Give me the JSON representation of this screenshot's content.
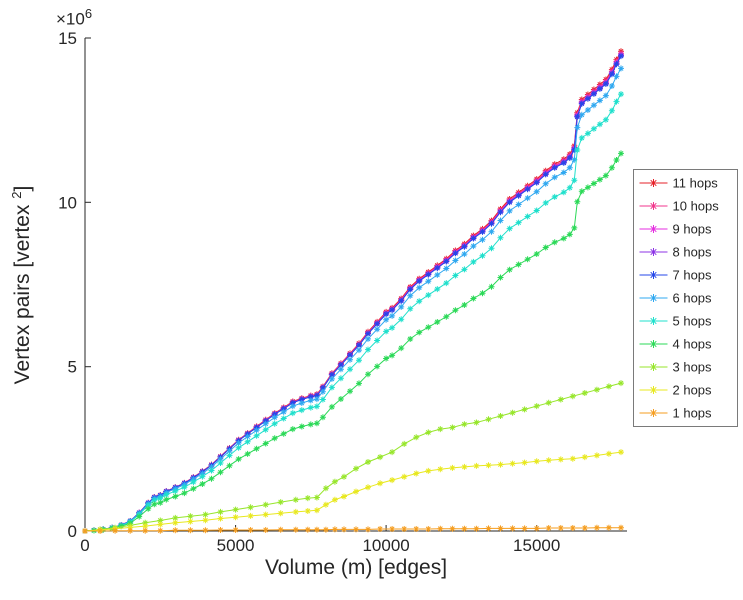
{
  "figure": {
    "xlabel": "Volume (m) [edges]",
    "ylabel_prefix": "Vertex pairs [vertex ",
    "ylabel_sup": "2",
    "ylabel_suffix": "]",
    "y_multiplier_label": "×10",
    "y_multiplier_exp": "6",
    "background_color": "#ffffff",
    "axis_color": "#262626",
    "legend_border_color": "#7a7a7a"
  },
  "chart_data": {
    "type": "line",
    "title": "",
    "xlabel": "Volume (m) [edges]",
    "ylabel": "Vertex pairs [vertex^2]",
    "xlim": [
      0,
      18000
    ],
    "ylim": [
      0,
      15000000
    ],
    "x_ticks": [
      0,
      5000,
      10000,
      15000
    ],
    "y_ticks": [
      0,
      5,
      10,
      15
    ],
    "y_tick_multiplier": 1000000,
    "grid": false,
    "marker": "asterisk",
    "legend_position": "right-outside",
    "base_x": [
      0,
      300,
      600,
      900,
      1200,
      1500,
      1800,
      2100,
      2300,
      2500,
      2700,
      3000,
      3300,
      3600,
      3900,
      4200,
      4500,
      4800,
      5100,
      5400,
      5700,
      6000,
      6300,
      6600,
      6900,
      7200,
      7500,
      7700,
      7900,
      8200,
      8500,
      8800,
      9100,
      9400,
      9700,
      10000,
      10200,
      10500,
      10800,
      11100,
      11400,
      11700,
      12000,
      12300,
      12600,
      12900,
      13200,
      13500,
      13800,
      14100,
      14400,
      14700,
      15000,
      15300,
      15600,
      15900,
      16100,
      16250,
      16350,
      16500,
      16700,
      16900,
      17100,
      17300,
      17500,
      17650,
      17800
    ],
    "base_y_millions": [
      0,
      0.02,
      0.05,
      0.1,
      0.18,
      0.3,
      0.55,
      0.85,
      1.02,
      1.08,
      1.2,
      1.32,
      1.45,
      1.62,
      1.8,
      2.0,
      2.25,
      2.5,
      2.75,
      2.95,
      3.15,
      3.35,
      3.55,
      3.72,
      3.9,
      4.0,
      4.08,
      4.12,
      4.35,
      4.75,
      5.05,
      5.35,
      5.65,
      6.0,
      6.3,
      6.6,
      6.72,
      7.0,
      7.35,
      7.6,
      7.8,
      8.0,
      8.2,
      8.45,
      8.65,
      8.9,
      9.1,
      9.35,
      9.7,
      10.0,
      10.2,
      10.4,
      10.6,
      10.85,
      11.05,
      11.2,
      11.35,
      11.6,
      12.6,
      13.0,
      13.15,
      13.3,
      13.45,
      13.6,
      13.9,
      14.2,
      14.45
    ],
    "low_x": [
      0,
      500,
      1000,
      1500,
      2000,
      2500,
      3000,
      3500,
      4000,
      4500,
      5000,
      5500,
      6000,
      6500,
      7000,
      7400,
      7700,
      8000,
      8300,
      8600,
      9000,
      9400,
      9800,
      10200,
      10600,
      11000,
      11400,
      11800,
      12200,
      12600,
      13000,
      13400,
      13800,
      14200,
      14600,
      15000,
      15400,
      15800,
      16200,
      16600,
      17000,
      17400,
      17800
    ],
    "series": [
      {
        "name": "11 hops",
        "color": "#e62028",
        "y_scale": 1.01
      },
      {
        "name": "10 hops",
        "color": "#f0368c",
        "y_scale": 1.006
      },
      {
        "name": "9 hops",
        "color": "#e42ce0",
        "y_scale": 1.003
      },
      {
        "name": "8 hops",
        "color": "#8c33e6",
        "y_scale": 1.0015
      },
      {
        "name": "7 hops",
        "color": "#2547e8",
        "y_scale": 1.0
      },
      {
        "name": "6 hops",
        "color": "#2fa8f0",
        "y_scale": 0.974
      },
      {
        "name": "5 hops",
        "color": "#1fe0cc",
        "y_scale": 0.92
      },
      {
        "name": "4 hops",
        "color": "#2bd957",
        "y_scale": 0.795
      },
      {
        "name": "3 hops",
        "color": "#97e62b",
        "y_millions": [
          0,
          0.05,
          0.1,
          0.17,
          0.25,
          0.32,
          0.4,
          0.45,
          0.5,
          0.58,
          0.65,
          0.72,
          0.8,
          0.88,
          0.95,
          1.0,
          1.02,
          1.3,
          1.5,
          1.65,
          1.9,
          2.1,
          2.25,
          2.4,
          2.65,
          2.85,
          3.0,
          3.1,
          3.15,
          3.25,
          3.3,
          3.4,
          3.5,
          3.6,
          3.7,
          3.8,
          3.9,
          4.0,
          4.1,
          4.2,
          4.3,
          4.4,
          4.5
        ]
      },
      {
        "name": "2 hops",
        "color": "#e8e81f",
        "y_millions": [
          0,
          0.03,
          0.07,
          0.11,
          0.15,
          0.2,
          0.25,
          0.29,
          0.33,
          0.38,
          0.42,
          0.46,
          0.5,
          0.54,
          0.58,
          0.61,
          0.63,
          0.8,
          0.95,
          1.05,
          1.2,
          1.33,
          1.45,
          1.55,
          1.65,
          1.75,
          1.83,
          1.88,
          1.92,
          1.95,
          1.98,
          2.0,
          2.02,
          2.05,
          2.08,
          2.12,
          2.15,
          2.18,
          2.2,
          2.25,
          2.3,
          2.35,
          2.4
        ]
      },
      {
        "name": "1 hops",
        "color": "#f59d1f",
        "y_millions": [
          0,
          0,
          0.01,
          0.01,
          0.01,
          0.01,
          0.02,
          0.02,
          0.02,
          0.03,
          0.03,
          0.03,
          0.03,
          0.04,
          0.04,
          0.04,
          0.04,
          0.04,
          0.05,
          0.05,
          0.05,
          0.05,
          0.06,
          0.06,
          0.06,
          0.06,
          0.06,
          0.07,
          0.07,
          0.07,
          0.07,
          0.08,
          0.08,
          0.08,
          0.08,
          0.08,
          0.09,
          0.09,
          0.09,
          0.09,
          0.1,
          0.1,
          0.1
        ]
      }
    ]
  }
}
